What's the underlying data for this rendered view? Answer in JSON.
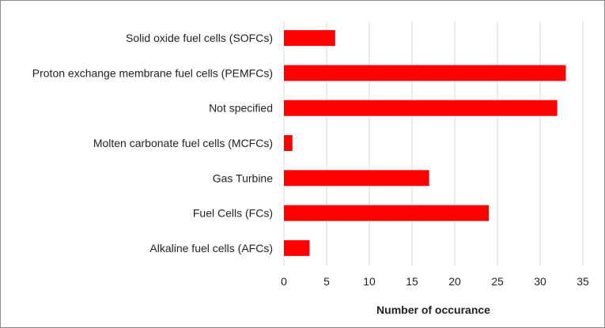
{
  "chart_data": {
    "type": "bar",
    "orientation": "horizontal",
    "categories": [
      "Solid oxide fuel cells (SOFCs)",
      "Proton exchange membrane fuel cells (PEMFCs)",
      "Not specified",
      "Molten carbonate fuel cells (MCFCs)",
      "Gas Turbine",
      "Fuel Cells (FCs)",
      "Alkaline fuel cells (AFCs)"
    ],
    "values": [
      6,
      33,
      32,
      1,
      17,
      24,
      3
    ],
    "title": "",
    "xlabel": "Number of occurance",
    "ylabel": "",
    "xlim": [
      0,
      35
    ],
    "xticks": [
      "0",
      "5",
      "10",
      "15",
      "20",
      "25",
      "30",
      "35"
    ],
    "grid": "vertical",
    "legend": "none",
    "bar_color": "#ff0000",
    "grid_color": "#d9d9d9"
  }
}
